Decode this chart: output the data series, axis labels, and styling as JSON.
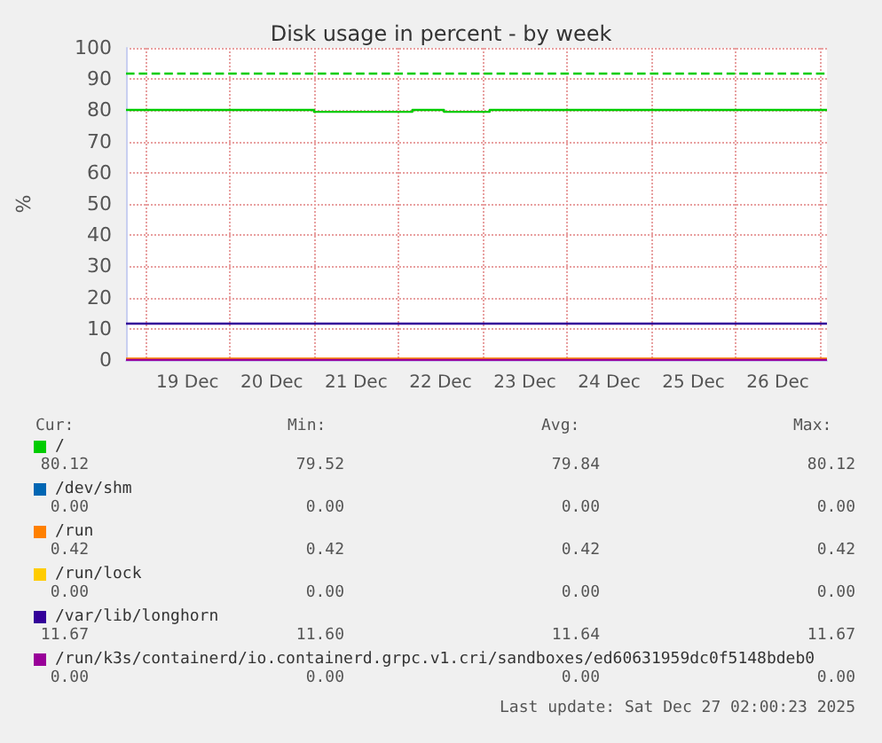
{
  "chart_data": {
    "type": "line",
    "title": "Disk usage in percent - by week",
    "ylabel": "%",
    "x": [
      "2025-12-18T18:30",
      "2025-12-27T02:00"
    ],
    "xlim": [
      "2025-12-18T18:30",
      "2025-12-27T02:00"
    ],
    "xticks": [
      {
        "value": "2025-12-19T00:00",
        "label": null
      },
      {
        "value": "2025-12-19T12:00",
        "label": "19 Dec"
      },
      {
        "value": "2025-12-20T00:00",
        "label": null
      },
      {
        "value": "2025-12-20T12:00",
        "label": "20 Dec"
      },
      {
        "value": "2025-12-21T00:00",
        "label": null
      },
      {
        "value": "2025-12-21T12:00",
        "label": "21 Dec"
      },
      {
        "value": "2025-12-22T00:00",
        "label": null
      },
      {
        "value": "2025-12-22T12:00",
        "label": "22 Dec"
      },
      {
        "value": "2025-12-23T00:00",
        "label": null
      },
      {
        "value": "2025-12-23T12:00",
        "label": "23 Dec"
      },
      {
        "value": "2025-12-24T00:00",
        "label": null
      },
      {
        "value": "2025-12-24T12:00",
        "label": "24 Dec"
      },
      {
        "value": "2025-12-25T00:00",
        "label": null
      },
      {
        "value": "2025-12-25T12:00",
        "label": "25 Dec"
      },
      {
        "value": "2025-12-26T00:00",
        "label": null
      },
      {
        "value": "2025-12-26T12:00",
        "label": "26 Dec"
      },
      {
        "value": "2025-12-27T00:00",
        "label": null
      }
    ],
    "ylim": [
      0,
      100
    ],
    "yticks": [
      0,
      10,
      20,
      30,
      40,
      50,
      60,
      70,
      80,
      90,
      100
    ],
    "grid": true,
    "legend": "bottom",
    "series": [
      {
        "name": "/",
        "type": "step",
        "color": "#00cc00",
        "x": [
          "2025-12-18T18:30",
          "2025-12-21T00:00",
          "2025-12-22T04:00",
          "2025-12-22T13:00",
          "2025-12-23T02:00",
          "2025-12-27T02:00"
        ],
        "values": [
          80.12,
          79.52,
          80.12,
          79.52,
          80.12,
          80.12
        ]
      },
      {
        "name": "/dev/shm",
        "color": "#0066b3",
        "values": [
          null,
          null
        ]
      },
      {
        "name": "/run",
        "color": "#ff8000",
        "values": [
          0.42,
          0.42
        ]
      },
      {
        "name": "/run/lock",
        "color": "#ffcc00",
        "values": [
          null,
          null
        ]
      },
      {
        "name": "/var/lib/longhorn",
        "color": "#330099",
        "values": [
          11.64,
          11.64
        ]
      },
      {
        "name": "/run/k3s/containerd/io.containerd.grpc.v1.cri/sandboxes/ed60631959dc0f5148bdeb0",
        "color": "#990099",
        "values": [
          0,
          0
        ]
      }
    ],
    "ref_lines": [
      {
        "axis": "y",
        "value": 92,
        "color": "#00cc00",
        "line_style": "dashed"
      }
    ],
    "annotations": [
      "Cur:",
      "Min:",
      "Avg:",
      "Max:",
      "80.12",
      "79.52",
      "79.84",
      "80.12",
      "0.00",
      "0.00",
      "0.00",
      "0.00",
      "0.42",
      "0.42",
      "0.42",
      "0.42",
      "0.00",
      "0.00",
      "0.00",
      "0.00",
      "11.67",
      "11.60",
      "11.64",
      "11.67",
      "0.00",
      "0.00",
      "0.00",
      "0.00",
      "Last update: Sat Dec 27 02:00:23 2025"
    ]
  }
}
